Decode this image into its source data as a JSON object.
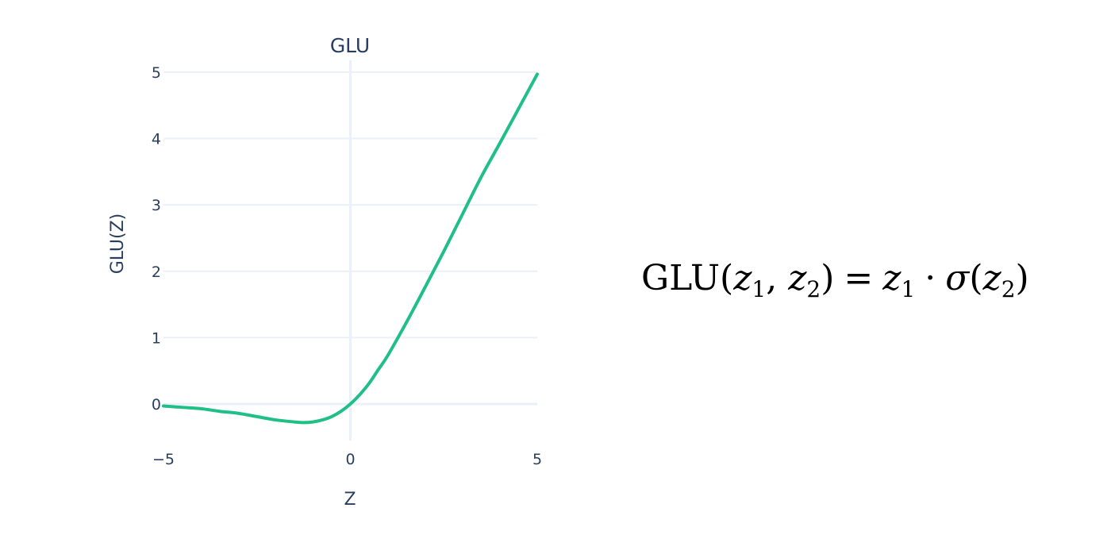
{
  "chart_data": {
    "type": "line",
    "title": "GLU",
    "xlabel": "Z",
    "ylabel": "GLU(Z)",
    "xlim": [
      -5,
      5
    ],
    "ylim": [
      -0.55,
      5.25
    ],
    "x_ticks": [
      -5,
      0,
      5
    ],
    "x_tick_labels": [
      "−5",
      "0",
      "5"
    ],
    "y_ticks": [
      0,
      1,
      2,
      3,
      4,
      5
    ],
    "y_tick_labels": [
      "0",
      "1",
      "2",
      "3",
      "4",
      "5"
    ],
    "grid": true,
    "zero_line": true,
    "line_color": "#1fbf87",
    "grid_color": "#ebf0f8",
    "series": [
      {
        "x": [
          -5.0,
          -4.5,
          -4.0,
          -3.5,
          -3.0,
          -2.5,
          -2.0,
          -1.5,
          -1.25,
          -1.0,
          -0.75,
          -0.5,
          -0.25,
          0.0,
          0.25,
          0.5,
          0.75,
          1.0,
          1.5,
          2.0,
          2.5,
          3.0,
          3.5,
          4.0,
          4.5,
          5.0
        ],
        "y": [
          -0.03,
          -0.05,
          -0.07,
          -0.11,
          -0.14,
          -0.19,
          -0.24,
          -0.27,
          -0.28,
          -0.27,
          -0.24,
          -0.19,
          -0.11,
          0.0,
          0.14,
          0.31,
          0.52,
          0.73,
          1.23,
          1.76,
          2.3,
          2.86,
          3.42,
          3.93,
          4.45,
          4.97
        ]
      }
    ]
  },
  "formula": {
    "name": "GLU",
    "arg1": "z",
    "arg1_sub": "1",
    "arg2": "z",
    "arg2_sub": "2",
    "equals": "=",
    "dot": "·",
    "sigma": "σ"
  }
}
